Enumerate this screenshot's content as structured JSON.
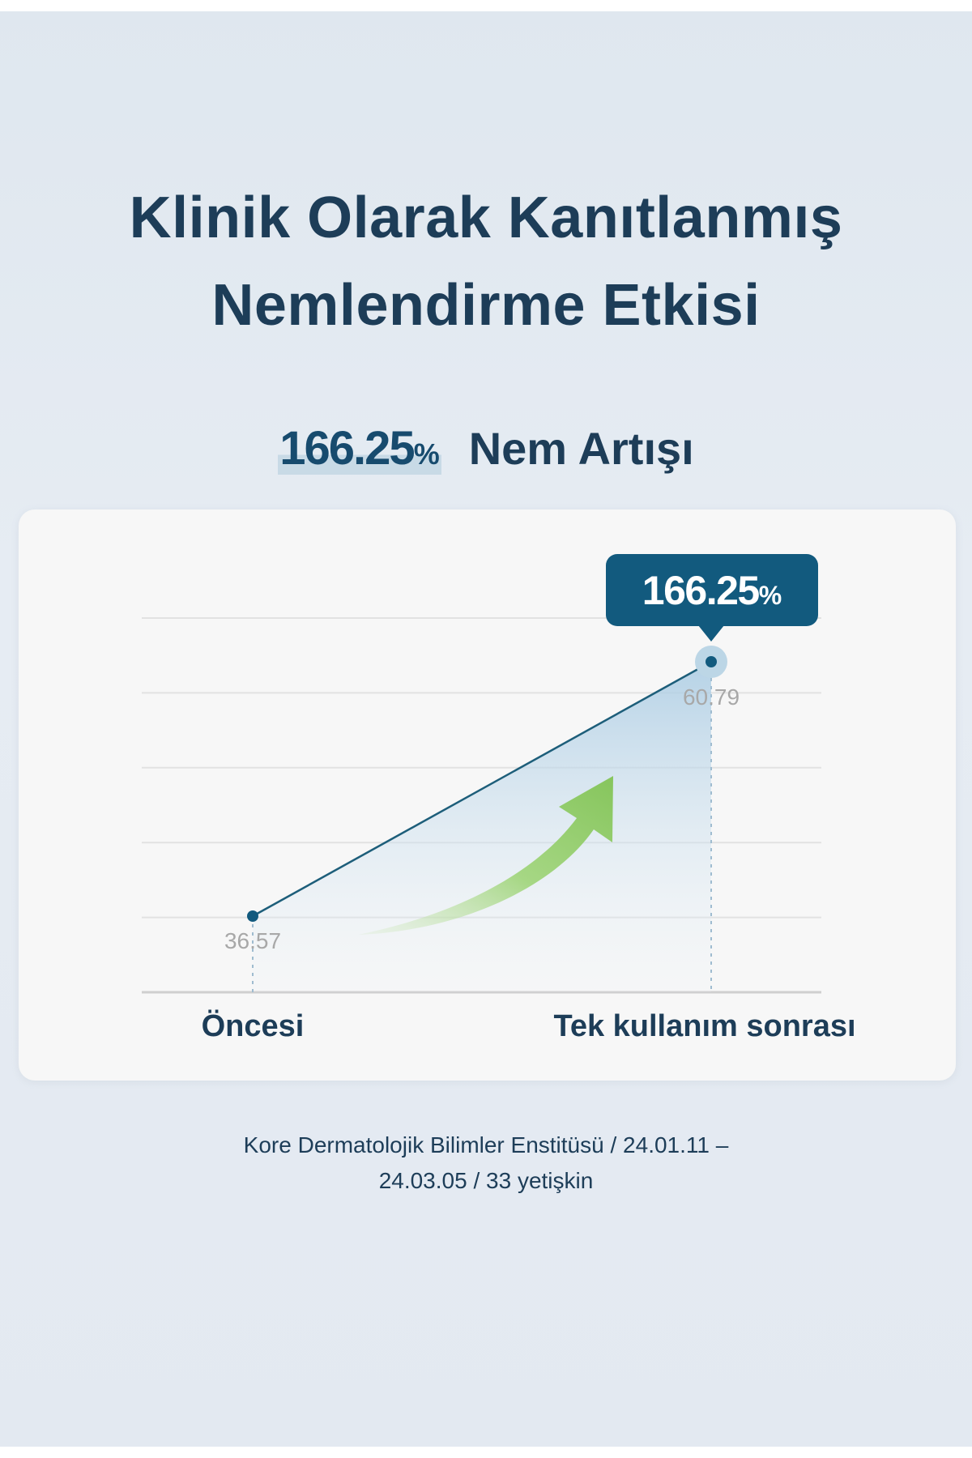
{
  "title": {
    "line1": "Klinik Olarak Kanıtlanmış",
    "line2": "Nemlendirme Etkisi"
  },
  "headline": {
    "value": "166.25",
    "unit": "%",
    "label": "Nem Artışı"
  },
  "colors": {
    "text": "#1d3d58",
    "accent": "#125a7e",
    "line": "#1d5e7a",
    "arrow": "#8cc864",
    "fill": "#b9d5e8"
  },
  "chart_data": {
    "type": "line",
    "categories": [
      "Öncesi",
      "Tek kullanım sonrası"
    ],
    "values": [
      36.57,
      60.79
    ],
    "value_labels": [
      "36.57",
      "60.79"
    ],
    "callout": {
      "value": "166.25",
      "unit": "%"
    },
    "grid": true,
    "decoration": "green-up-arrow-icon"
  },
  "footnote": {
    "line1": "Kore Dermatolojik Bilimler Enstitüsü / 24.01.11 –",
    "line2": "24.03.05 / 33 yetişkin"
  }
}
